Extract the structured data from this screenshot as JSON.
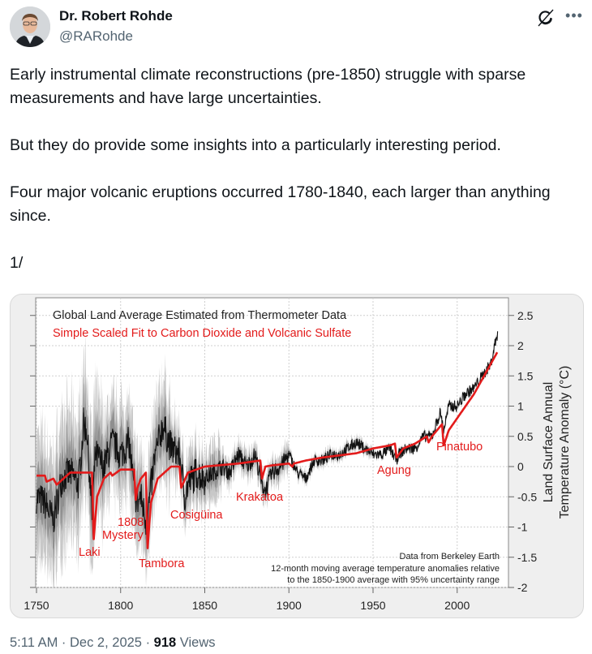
{
  "author": {
    "name": "Dr. Robert Rohde",
    "handle": "@RARohde",
    "avatar_icon": "profile-photo"
  },
  "header_actions": {
    "grok_icon": "grok-icon",
    "more_icon": "more-icon",
    "more_label": "•••"
  },
  "tweet": {
    "paragraphs": [
      "Early instrumental climate reconstructions (pre-1850) struggle with sparse measurements and have large uncertainties.",
      "But they do provide some insights into a particularly interesting period.",
      "Four major volcanic eruptions occurred 1780-1840, each larger than anything since.",
      "1/"
    ]
  },
  "footer": {
    "time": "5:11 AM",
    "sep1": " · ",
    "date": "Dec 2, 2025",
    "sep2": " · ",
    "views_count": "918",
    "views_label": " Views"
  },
  "chart_data": {
    "type": "line",
    "legend": [
      {
        "label": "Global Land Average Estimated from Thermometer Data",
        "color": "#222222"
      },
      {
        "label": "Simple Scaled Fit to Carbon Dioxide and Volcanic Sulfate",
        "color": "#e31b1b"
      }
    ],
    "legend_position": "top-left",
    "xlim": [
      1750,
      2025
    ],
    "ylim": [
      -2,
      2.5
    ],
    "x_ticks": [
      "1750",
      "1800",
      "1850",
      "1900",
      "1950",
      "2000"
    ],
    "y_ticks": [
      "2.5",
      "2",
      "1.5",
      "1",
      "0.5",
      "0",
      "-0.5",
      "-1",
      "-1.5",
      "-2"
    ],
    "ylabel_line1": "Land Surface Annual",
    "ylabel_line2": "Temperature Anomaly (°C)",
    "grid": true,
    "annotations": [
      {
        "text": "Laki",
        "year": 1783
      },
      {
        "text": "1808",
        "year": 1808
      },
      {
        "text": "Mystery",
        "year": 1808
      },
      {
        "text": "Tambora",
        "year": 1815
      },
      {
        "text": "Cosigüina",
        "year": 1835
      },
      {
        "text": "Krakatoa",
        "year": 1883
      },
      {
        "text": "Agung",
        "year": 1963
      },
      {
        "text": "Pinatubo",
        "year": 1991
      }
    ],
    "source_note": [
      "Data from Berkeley Earth",
      "12-month moving average temperature anomalies relative",
      "to the 1850-1900 average with 95% uncertainty range"
    ],
    "series": [
      {
        "name": "Observed (approx.)",
        "x": [
          1750,
          1755,
          1760,
          1765,
          1770,
          1775,
          1778,
          1780,
          1783,
          1785,
          1790,
          1795,
          1800,
          1805,
          1808,
          1810,
          1812,
          1815,
          1817,
          1820,
          1825,
          1830,
          1835,
          1838,
          1840,
          1845,
          1850,
          1855,
          1860,
          1865,
          1870,
          1875,
          1880,
          1884,
          1886,
          1890,
          1895,
          1900,
          1905,
          1910,
          1915,
          1920,
          1925,
          1930,
          1935,
          1940,
          1945,
          1950,
          1955,
          1960,
          1964,
          1965,
          1970,
          1975,
          1980,
          1985,
          1990,
          1992,
          1995,
          2000,
          2005,
          2010,
          2015,
          2020,
          2023,
          2024
        ],
        "y": [
          -0.5,
          -0.6,
          -0.9,
          -0.2,
          -0.1,
          -0.3,
          0.7,
          0.6,
          -0.8,
          0.2,
          0.0,
          0.4,
          0.2,
          0.4,
          -0.4,
          -0.6,
          -0.5,
          -0.9,
          -0.6,
          0.1,
          0.7,
          0.3,
          0.2,
          -0.5,
          -0.3,
          -0.1,
          -0.2,
          -0.1,
          0.0,
          -0.1,
          0.2,
          0.0,
          0.2,
          -0.3,
          -0.4,
          -0.1,
          0.0,
          0.2,
          -0.1,
          -0.2,
          0.1,
          0.1,
          0.2,
          0.2,
          0.3,
          0.4,
          0.3,
          0.2,
          0.2,
          0.3,
          0.1,
          0.2,
          0.3,
          0.3,
          0.5,
          0.5,
          0.9,
          0.6,
          1.0,
          1.0,
          1.2,
          1.3,
          1.5,
          1.7,
          2.1,
          2.2
        ]
      },
      {
        "name": "Scaled Fit (approx.)",
        "x": [
          1750,
          1755,
          1756,
          1760,
          1762,
          1770,
          1783,
          1784,
          1786,
          1790,
          1794,
          1795,
          1800,
          1808,
          1809,
          1810,
          1812,
          1815,
          1816,
          1818,
          1822,
          1830,
          1835,
          1836,
          1840,
          1850,
          1870,
          1883,
          1884,
          1886,
          1890,
          1900,
          1902,
          1903,
          1910,
          1920,
          1940,
          1950,
          1960,
          1963,
          1964,
          1968,
          1975,
          1982,
          1983,
          1985,
          1991,
          1992,
          1995,
          2000,
          2010,
          2024
        ],
        "y": [
          -0.15,
          -0.15,
          -0.25,
          -0.2,
          -0.3,
          -0.1,
          -0.1,
          -1.2,
          -0.5,
          -0.2,
          -0.1,
          -0.15,
          -0.05,
          -0.05,
          -0.55,
          -0.35,
          -0.2,
          -0.1,
          -1.35,
          -0.6,
          -0.2,
          0.0,
          0.0,
          -0.35,
          -0.1,
          0.0,
          0.05,
          0.1,
          -0.2,
          0.0,
          0.02,
          0.05,
          0.0,
          0.05,
          0.1,
          0.15,
          0.22,
          0.3,
          0.35,
          0.38,
          0.15,
          0.3,
          0.38,
          0.5,
          0.4,
          0.5,
          0.7,
          0.35,
          0.6,
          0.8,
          1.2,
          1.9
        ]
      }
    ]
  }
}
